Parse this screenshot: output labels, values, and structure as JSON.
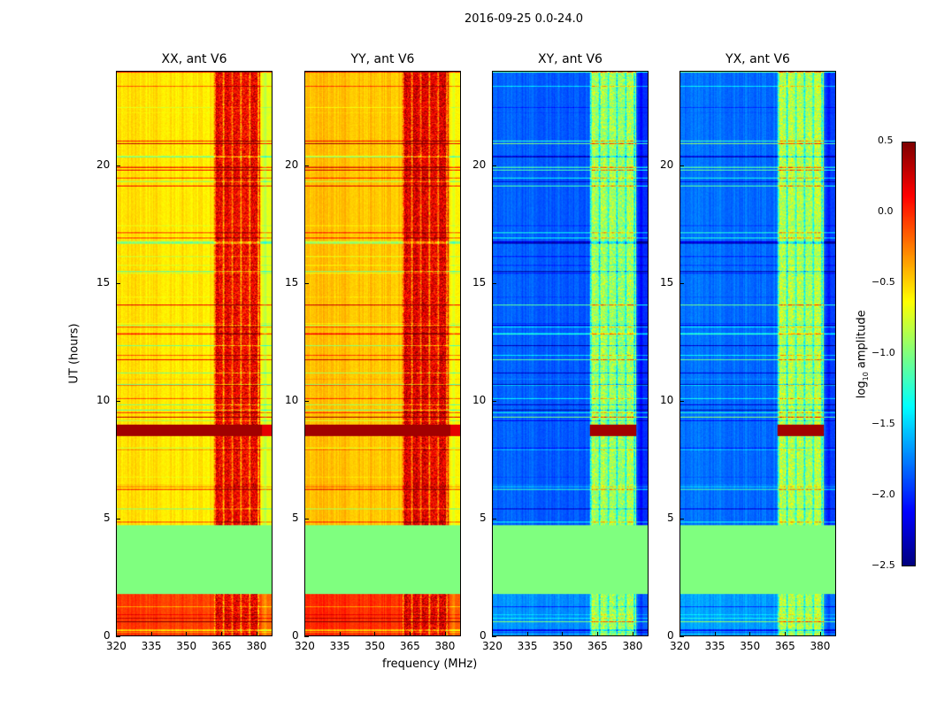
{
  "chart_data": {
    "type": "heatmap",
    "suptitle": "2016-09-25 0.0-24.0",
    "xlabel": "frequency (MHz)",
    "ylabel": "UT (hours)",
    "xlim": [
      320,
      387
    ],
    "ylim": [
      0,
      24
    ],
    "xticks": [
      "320",
      "335",
      "350",
      "365",
      "380"
    ],
    "yticks": [
      "0",
      "5",
      "10",
      "15",
      "20"
    ],
    "colorbar": {
      "label": "log10 amplitude",
      "label_main": "log",
      "label_sub": "10",
      "label_tail": " amplitude",
      "colormap": "jet",
      "range": [
        -2.5,
        0.5
      ],
      "ticks": [
        "0.5",
        "0.0",
        "−0.5",
        "−1.0",
        "−1.5",
        "−2.0",
        "−2.5"
      ]
    },
    "panels": [
      {
        "title": "XX, ant V6",
        "base": -0.55,
        "rfi": 0.15,
        "early": -0.05
      },
      {
        "title": "YY, ant V6",
        "base": -0.45,
        "rfi": 0.2,
        "early": 0.0
      },
      {
        "title": "XY, ant V6",
        "base": -1.85,
        "rfi": -0.9,
        "early": -1.7
      },
      {
        "title": "YX, ant V6",
        "base": -1.8,
        "rfi": -0.85,
        "early": -1.65
      }
    ],
    "flagged_interval_hours": [
      1.8,
      4.7
    ],
    "flagged_value": -1.0,
    "early_interval_hours": [
      0,
      1.8
    ],
    "rfi_band_mhz": [
      362,
      382
    ],
    "strong_band_hours": [
      8.5,
      9.0
    ]
  }
}
